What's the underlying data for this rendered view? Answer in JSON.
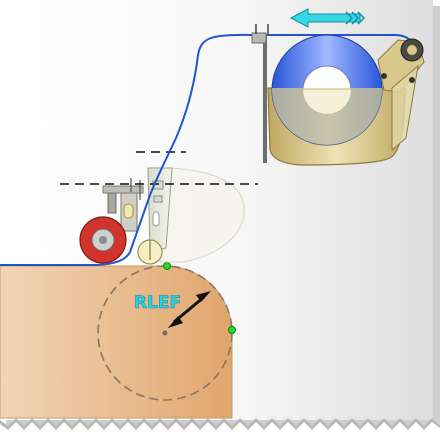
{
  "diagram": {
    "labels": {
      "radius_label": "RLEF"
    },
    "colors": {
      "background_light": "#f6f6f6",
      "background_dark": "#dcdcdc",
      "profile_light": "#f1d2b2",
      "profile_dark": "#e2aa74",
      "wire": "#2255cc",
      "arrow_cyan": "#36d8e8",
      "label_cyan": "#27d2e6",
      "roller_red": "#d0342c",
      "coil_blue": "#2f5fe0",
      "frame_tan": "#c8b372",
      "marker_green": "#22dd22"
    },
    "icons": [
      "feed-direction-arrow-icon",
      "wire-coil-icon",
      "pressure-roller-icon",
      "radius-arrow-icon"
    ]
  }
}
